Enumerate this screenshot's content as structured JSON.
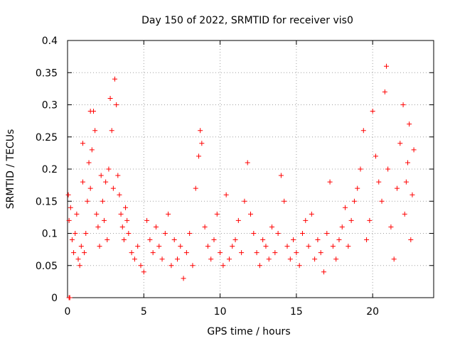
{
  "chart_data": {
    "type": "scatter",
    "title": "Day 150 of 2022, SRMTID for receiver vis0",
    "xlabel": "GPS time / hours",
    "ylabel": "SRMTID / TECUs",
    "xlim": [
      0,
      24
    ],
    "ylim": [
      0,
      0.4
    ],
    "grid": true,
    "marker": "+",
    "color": "#ff0000",
    "x_ticks": [
      0,
      5,
      10,
      15,
      20
    ],
    "x_tick_labels": [
      "0",
      "5",
      "10",
      "15",
      "20"
    ],
    "y_ticks": [
      0,
      0.05,
      0.1,
      0.15,
      0.2,
      0.25,
      0.3,
      0.35,
      0.4
    ],
    "y_tick_labels": [
      "0",
      "0.05",
      "0.1",
      "0.15",
      "0.2",
      "0.25",
      "0.3",
      "0.35",
      "0.4"
    ],
    "series": [
      {
        "name": "SRMTID",
        "points": [
          [
            0.05,
            0.16
          ],
          [
            0.1,
            0.12
          ],
          [
            0.1,
            0.0
          ],
          [
            0.15,
            0.0
          ],
          [
            0.2,
            0.14
          ],
          [
            0.3,
            0.09
          ],
          [
            0.4,
            0.07
          ],
          [
            0.5,
            0.1
          ],
          [
            0.6,
            0.13
          ],
          [
            0.7,
            0.06
          ],
          [
            0.8,
            0.05
          ],
          [
            0.9,
            0.08
          ],
          [
            1.0,
            0.24
          ],
          [
            1.0,
            0.18
          ],
          [
            1.1,
            0.07
          ],
          [
            1.2,
            0.1
          ],
          [
            1.3,
            0.15
          ],
          [
            1.4,
            0.21
          ],
          [
            1.5,
            0.29
          ],
          [
            1.5,
            0.17
          ],
          [
            1.6,
            0.23
          ],
          [
            1.7,
            0.29
          ],
          [
            1.8,
            0.26
          ],
          [
            1.9,
            0.13
          ],
          [
            2.0,
            0.11
          ],
          [
            2.1,
            0.08
          ],
          [
            2.2,
            0.19
          ],
          [
            2.3,
            0.15
          ],
          [
            2.4,
            0.12
          ],
          [
            2.5,
            0.18
          ],
          [
            2.6,
            0.09
          ],
          [
            2.7,
            0.2
          ],
          [
            2.8,
            0.31
          ],
          [
            2.9,
            0.26
          ],
          [
            3.0,
            0.17
          ],
          [
            3.1,
            0.34
          ],
          [
            3.2,
            0.3
          ],
          [
            3.3,
            0.19
          ],
          [
            3.4,
            0.16
          ],
          [
            3.5,
            0.13
          ],
          [
            3.6,
            0.11
          ],
          [
            3.7,
            0.09
          ],
          [
            3.8,
            0.14
          ],
          [
            3.9,
            0.12
          ],
          [
            4.0,
            0.1
          ],
          [
            4.2,
            0.07
          ],
          [
            4.4,
            0.06
          ],
          [
            4.6,
            0.08
          ],
          [
            4.8,
            0.05
          ],
          [
            5.0,
            0.04
          ],
          [
            5.2,
            0.12
          ],
          [
            5.4,
            0.09
          ],
          [
            5.6,
            0.07
          ],
          [
            5.8,
            0.11
          ],
          [
            6.0,
            0.08
          ],
          [
            6.2,
            0.06
          ],
          [
            6.4,
            0.1
          ],
          [
            6.6,
            0.13
          ],
          [
            6.8,
            0.05
          ],
          [
            7.0,
            0.09
          ],
          [
            7.2,
            0.06
          ],
          [
            7.4,
            0.08
          ],
          [
            7.6,
            0.03
          ],
          [
            7.8,
            0.07
          ],
          [
            8.0,
            0.1
          ],
          [
            8.2,
            0.05
          ],
          [
            8.4,
            0.17
          ],
          [
            8.6,
            0.22
          ],
          [
            8.7,
            0.26
          ],
          [
            8.8,
            0.24
          ],
          [
            9.0,
            0.11
          ],
          [
            9.2,
            0.08
          ],
          [
            9.4,
            0.06
          ],
          [
            9.6,
            0.09
          ],
          [
            9.8,
            0.13
          ],
          [
            10.0,
            0.07
          ],
          [
            10.2,
            0.05
          ],
          [
            10.4,
            0.16
          ],
          [
            10.6,
            0.06
          ],
          [
            10.8,
            0.08
          ],
          [
            11.0,
            0.09
          ],
          [
            11.2,
            0.12
          ],
          [
            11.4,
            0.07
          ],
          [
            11.6,
            0.15
          ],
          [
            11.8,
            0.21
          ],
          [
            12.0,
            0.13
          ],
          [
            12.2,
            0.1
          ],
          [
            12.4,
            0.07
          ],
          [
            12.6,
            0.05
          ],
          [
            12.8,
            0.09
          ],
          [
            13.0,
            0.08
          ],
          [
            13.2,
            0.06
          ],
          [
            13.4,
            0.11
          ],
          [
            13.6,
            0.07
          ],
          [
            13.8,
            0.1
          ],
          [
            14.0,
            0.19
          ],
          [
            14.2,
            0.15
          ],
          [
            14.4,
            0.08
          ],
          [
            14.6,
            0.06
          ],
          [
            14.8,
            0.09
          ],
          [
            15.0,
            0.07
          ],
          [
            15.2,
            0.05
          ],
          [
            15.4,
            0.1
          ],
          [
            15.6,
            0.12
          ],
          [
            15.8,
            0.08
          ],
          [
            16.0,
            0.13
          ],
          [
            16.2,
            0.06
          ],
          [
            16.4,
            0.09
          ],
          [
            16.6,
            0.07
          ],
          [
            16.8,
            0.04
          ],
          [
            17.0,
            0.1
          ],
          [
            17.2,
            0.18
          ],
          [
            17.4,
            0.08
          ],
          [
            17.6,
            0.06
          ],
          [
            17.8,
            0.09
          ],
          [
            18.0,
            0.11
          ],
          [
            18.2,
            0.14
          ],
          [
            18.4,
            0.08
          ],
          [
            18.6,
            0.12
          ],
          [
            18.8,
            0.15
          ],
          [
            19.0,
            0.17
          ],
          [
            19.2,
            0.2
          ],
          [
            19.4,
            0.26
          ],
          [
            19.6,
            0.09
          ],
          [
            19.8,
            0.12
          ],
          [
            20.0,
            0.29
          ],
          [
            20.2,
            0.22
          ],
          [
            20.4,
            0.18
          ],
          [
            20.6,
            0.15
          ],
          [
            20.8,
            0.32
          ],
          [
            20.9,
            0.36
          ],
          [
            21.0,
            0.2
          ],
          [
            21.2,
            0.11
          ],
          [
            21.4,
            0.06
          ],
          [
            21.6,
            0.17
          ],
          [
            21.8,
            0.24
          ],
          [
            22.0,
            0.3
          ],
          [
            22.1,
            0.13
          ],
          [
            22.2,
            0.18
          ],
          [
            22.3,
            0.21
          ],
          [
            22.4,
            0.27
          ],
          [
            22.5,
            0.09
          ],
          [
            22.6,
            0.16
          ],
          [
            22.7,
            0.23
          ]
        ]
      }
    ]
  }
}
